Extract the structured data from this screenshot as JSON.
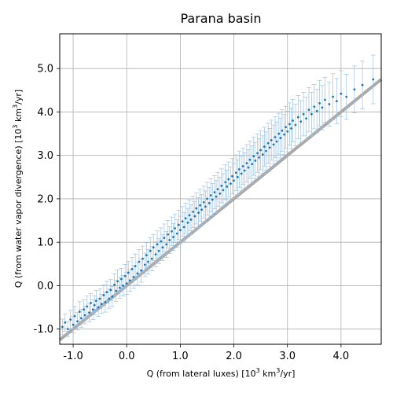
{
  "chart_data": {
    "type": "scatter",
    "title": "Parana basin",
    "xlabel": {
      "prefix": "Q (from lateral luxes) [10",
      "sup1": "3",
      "mid": " km",
      "sup2": "3",
      "suffix": "/yr]"
    },
    "ylabel": {
      "prefix": "Q (from water vapor divergence) [10",
      "sup1": "3",
      "mid": " km",
      "sup2": "3",
      "suffix": "/yr]"
    },
    "xlim": [
      -1.25,
      4.75
    ],
    "ylim": [
      -1.35,
      5.8
    ],
    "xticks": [
      -1.0,
      0.0,
      1.0,
      2.0,
      3.0,
      4.0
    ],
    "yticks": [
      -1.0,
      0.0,
      1.0,
      2.0,
      3.0,
      4.0,
      5.0
    ],
    "xtick_labels": [
      "-1.0",
      "0.0",
      "1.0",
      "2.0",
      "3.0",
      "4.0"
    ],
    "ytick_labels": [
      "-1.0",
      "0.0",
      "1.0",
      "2.0",
      "3.0",
      "4.0",
      "5.0"
    ],
    "grid": true,
    "reference_line": {
      "slope": 1,
      "intercept": 0,
      "color": "#aaaaaa"
    },
    "point_color": "#1f77b4",
    "errorbar_color": "#9fc2e0",
    "series": [
      {
        "points": [
          [
            -1.2,
            -0.95,
            0.18
          ],
          [
            -1.15,
            -0.85,
            0.2
          ],
          [
            -1.1,
            -1.0,
            0.17
          ],
          [
            -1.05,
            -0.78,
            0.21
          ],
          [
            -1.0,
            -0.9,
            0.19
          ],
          [
            -0.97,
            -0.7,
            0.22
          ],
          [
            -0.92,
            -0.82,
            0.2
          ],
          [
            -0.88,
            -0.6,
            0.23
          ],
          [
            -0.85,
            -0.75,
            0.21
          ],
          [
            -0.8,
            -0.55,
            0.22
          ],
          [
            -0.78,
            -0.68,
            0.2
          ],
          [
            -0.74,
            -0.48,
            0.24
          ],
          [
            -0.7,
            -0.62,
            0.21
          ],
          [
            -0.67,
            -0.4,
            0.22
          ],
          [
            -0.63,
            -0.55,
            0.23
          ],
          [
            -0.6,
            -0.45,
            0.22
          ],
          [
            -0.57,
            -0.35,
            0.24
          ],
          [
            -0.53,
            -0.5,
            0.21
          ],
          [
            -0.5,
            -0.3,
            0.23
          ],
          [
            -0.47,
            -0.42,
            0.22
          ],
          [
            -0.43,
            -0.22,
            0.24
          ],
          [
            -0.4,
            -0.38,
            0.23
          ],
          [
            -0.37,
            -0.15,
            0.25
          ],
          [
            -0.33,
            -0.3,
            0.22
          ],
          [
            -0.3,
            -0.1,
            0.24
          ],
          [
            -0.27,
            -0.25,
            0.23
          ],
          [
            -0.23,
            0.02,
            0.25
          ],
          [
            -0.2,
            -0.12,
            0.24
          ],
          [
            -0.17,
            0.1,
            0.26
          ],
          [
            -0.13,
            -0.05,
            0.24
          ],
          [
            -0.1,
            0.15,
            0.25
          ],
          [
            -0.07,
            0.0,
            0.24
          ],
          [
            -0.03,
            0.22,
            0.27
          ],
          [
            0.0,
            0.05,
            0.25
          ],
          [
            0.03,
            0.3,
            0.26
          ],
          [
            0.06,
            0.12,
            0.25
          ],
          [
            0.1,
            0.38,
            0.27
          ],
          [
            0.13,
            0.2,
            0.26
          ],
          [
            0.16,
            0.45,
            0.28
          ],
          [
            0.2,
            0.28,
            0.26
          ],
          [
            0.23,
            0.55,
            0.28
          ],
          [
            0.27,
            0.35,
            0.27
          ],
          [
            0.3,
            0.62,
            0.29
          ],
          [
            0.34,
            0.48,
            0.27
          ],
          [
            0.37,
            0.7,
            0.29
          ],
          [
            0.4,
            0.55,
            0.28
          ],
          [
            0.44,
            0.8,
            0.3
          ],
          [
            0.47,
            0.62,
            0.28
          ],
          [
            0.5,
            0.88,
            0.3
          ],
          [
            0.54,
            0.72,
            0.29
          ],
          [
            0.57,
            0.95,
            0.31
          ],
          [
            0.6,
            0.8,
            0.29
          ],
          [
            0.64,
            1.02,
            0.31
          ],
          [
            0.67,
            0.88,
            0.3
          ],
          [
            0.7,
            1.1,
            0.32
          ],
          [
            0.74,
            0.95,
            0.3
          ],
          [
            0.77,
            1.18,
            0.32
          ],
          [
            0.8,
            1.05,
            0.31
          ],
          [
            0.84,
            1.25,
            0.33
          ],
          [
            0.87,
            1.12,
            0.31
          ],
          [
            0.9,
            1.32,
            0.33
          ],
          [
            0.94,
            1.2,
            0.32
          ],
          [
            0.97,
            1.4,
            0.34
          ],
          [
            1.0,
            1.28,
            0.32
          ],
          [
            1.04,
            1.48,
            0.34
          ],
          [
            1.07,
            1.35,
            0.33
          ],
          [
            1.1,
            1.55,
            0.35
          ],
          [
            1.14,
            1.45,
            0.33
          ],
          [
            1.17,
            1.62,
            0.35
          ],
          [
            1.2,
            1.52,
            0.34
          ],
          [
            1.24,
            1.7,
            0.36
          ],
          [
            1.27,
            1.6,
            0.34
          ],
          [
            1.3,
            1.78,
            0.36
          ],
          [
            1.34,
            1.68,
            0.35
          ],
          [
            1.37,
            1.85,
            0.37
          ],
          [
            1.4,
            1.75,
            0.35
          ],
          [
            1.44,
            1.92,
            0.37
          ],
          [
            1.47,
            1.82,
            0.36
          ],
          [
            1.5,
            2.0,
            0.38
          ],
          [
            1.54,
            1.9,
            0.36
          ],
          [
            1.57,
            2.08,
            0.38
          ],
          [
            1.6,
            1.98,
            0.37
          ],
          [
            1.64,
            2.15,
            0.38
          ],
          [
            1.67,
            2.05,
            0.37
          ],
          [
            1.7,
            2.22,
            0.39
          ],
          [
            1.74,
            2.12,
            0.38
          ],
          [
            1.77,
            2.3,
            0.39
          ],
          [
            1.8,
            2.2,
            0.38
          ],
          [
            1.84,
            2.38,
            0.4
          ],
          [
            1.87,
            2.28,
            0.38
          ],
          [
            1.9,
            2.45,
            0.4
          ],
          [
            1.94,
            2.35,
            0.39
          ],
          [
            1.97,
            2.52,
            0.41
          ],
          [
            2.0,
            2.42,
            0.39
          ],
          [
            2.04,
            2.6,
            0.41
          ],
          [
            2.07,
            2.5,
            0.4
          ],
          [
            2.1,
            2.68,
            0.42
          ],
          [
            2.14,
            2.58,
            0.4
          ],
          [
            2.17,
            2.75,
            0.42
          ],
          [
            2.2,
            2.65,
            0.41
          ],
          [
            2.24,
            2.82,
            0.43
          ],
          [
            2.27,
            2.72,
            0.41
          ],
          [
            2.3,
            2.9,
            0.43
          ],
          [
            2.34,
            2.8,
            0.42
          ],
          [
            2.37,
            2.98,
            0.44
          ],
          [
            2.4,
            2.88,
            0.42
          ],
          [
            2.44,
            3.05,
            0.44
          ],
          [
            2.47,
            2.95,
            0.43
          ],
          [
            2.5,
            3.12,
            0.45
          ],
          [
            2.54,
            3.02,
            0.43
          ],
          [
            2.57,
            3.2,
            0.45
          ],
          [
            2.6,
            3.1,
            0.44
          ],
          [
            2.64,
            3.28,
            0.46
          ],
          [
            2.67,
            3.18,
            0.44
          ],
          [
            2.7,
            3.35,
            0.46
          ],
          [
            2.74,
            3.25,
            0.45
          ],
          [
            2.77,
            3.42,
            0.47
          ],
          [
            2.8,
            3.32,
            0.45
          ],
          [
            2.84,
            3.5,
            0.47
          ],
          [
            2.87,
            3.4,
            0.46
          ],
          [
            2.9,
            3.57,
            0.48
          ],
          [
            2.94,
            3.48,
            0.46
          ],
          [
            2.97,
            3.65,
            0.48
          ],
          [
            3.0,
            3.55,
            0.47
          ],
          [
            3.04,
            3.72,
            0.49
          ],
          [
            3.07,
            3.62,
            0.47
          ],
          [
            3.1,
            3.8,
            0.49
          ],
          [
            3.15,
            3.7,
            0.48
          ],
          [
            3.2,
            3.88,
            0.5
          ],
          [
            3.25,
            3.78,
            0.48
          ],
          [
            3.3,
            3.95,
            0.5
          ],
          [
            3.35,
            3.85,
            0.49
          ],
          [
            3.4,
            4.05,
            0.51
          ],
          [
            3.45,
            3.95,
            0.5
          ],
          [
            3.5,
            4.12,
            0.51
          ],
          [
            3.55,
            4.02,
            0.5
          ],
          [
            3.6,
            4.2,
            0.52
          ],
          [
            3.65,
            4.1,
            0.51
          ],
          [
            3.7,
            4.28,
            0.52
          ],
          [
            3.78,
            4.18,
            0.51
          ],
          [
            3.85,
            4.35,
            0.53
          ],
          [
            3.92,
            4.25,
            0.52
          ],
          [
            4.0,
            4.42,
            0.53
          ],
          [
            4.1,
            4.35,
            0.52
          ],
          [
            4.25,
            4.52,
            0.54
          ],
          [
            4.4,
            4.62,
            0.55
          ],
          [
            4.6,
            4.75,
            0.56
          ]
        ]
      }
    ]
  }
}
